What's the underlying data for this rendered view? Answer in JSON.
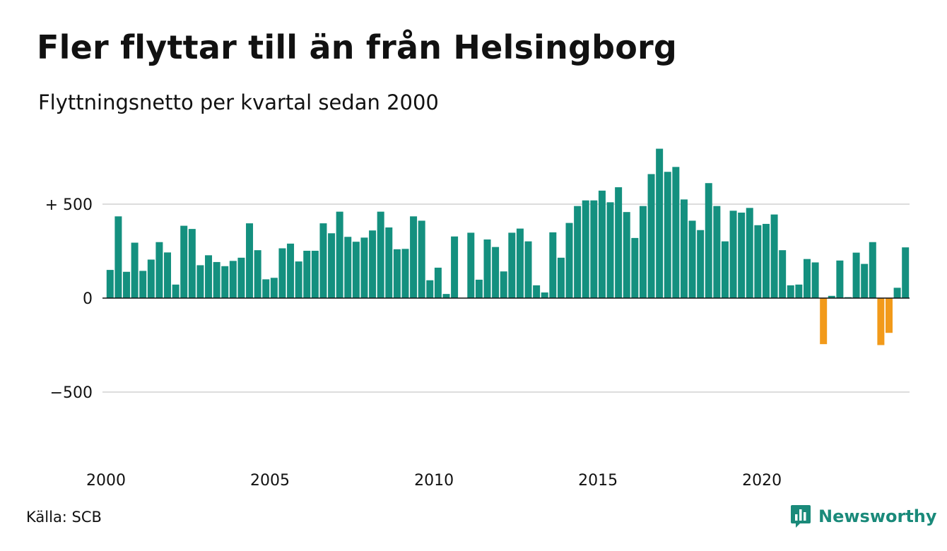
{
  "title": "Fler flyttar till än från Helsingborg",
  "subtitle": "Flyttningsnetto per kvartal sedan 2000",
  "source": "Källa: SCB",
  "brand": "Newsworthy",
  "colors": {
    "positive": "#14907f",
    "negative": "#f29a1a",
    "grid": "#dddddd",
    "brand": "#1a8a7a"
  },
  "chart_data": {
    "type": "bar",
    "x_start": "2000 Q1",
    "frequency": "quarterly",
    "x_ticks": [
      "2000",
      "2005",
      "2010",
      "2015",
      "2020"
    ],
    "y_ticks": [
      {
        "value": 500,
        "label": "+ 500"
      },
      {
        "value": 0,
        "label": "0"
      },
      {
        "value": -500,
        "label": "−500"
      }
    ],
    "ylim": [
      -800,
      800
    ],
    "grid": true,
    "values": [
      150,
      435,
      140,
      295,
      145,
      205,
      298,
      243,
      72,
      385,
      368,
      175,
      228,
      192,
      170,
      198,
      215,
      398,
      255,
      100,
      108,
      265,
      290,
      195,
      252,
      252,
      398,
      345,
      460,
      326,
      300,
      322,
      360,
      460,
      376,
      260,
      262,
      435,
      412,
      95,
      162,
      22,
      328,
      0,
      348,
      98,
      312,
      272,
      142,
      348,
      370,
      302,
      68,
      30,
      350,
      215,
      400,
      490,
      520,
      520,
      572,
      510,
      590,
      458,
      320,
      490,
      660,
      795,
      672,
      698,
      525,
      412,
      362,
      612,
      490,
      302,
      465,
      455,
      480,
      388,
      395,
      445,
      255,
      68,
      72,
      208,
      190,
      -245,
      12,
      200,
      5,
      242,
      182,
      298,
      -250,
      -185,
      55,
      270
    ]
  }
}
